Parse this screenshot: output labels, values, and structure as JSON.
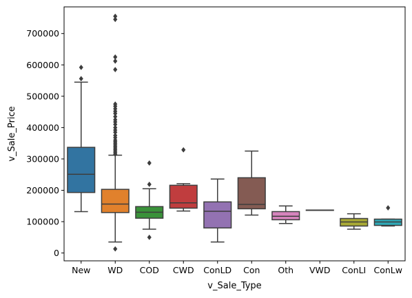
{
  "chart_data": {
    "type": "box",
    "title": "",
    "xlabel": "v_Sale_Type",
    "ylabel": "v_Sale_Price",
    "ylim": [
      -25000,
      785000
    ],
    "yticks": [
      0,
      100000,
      200000,
      300000,
      400000,
      500000,
      600000,
      700000
    ],
    "ytick_labels": [
      "0",
      "100000",
      "200000",
      "300000",
      "400000",
      "500000",
      "600000",
      "700000"
    ],
    "categories": [
      "New",
      "WD",
      "COD",
      "CWD",
      "ConLD",
      "Con",
      "Oth",
      "VWD",
      "ConLI",
      "ConLw"
    ],
    "boxes": [
      {
        "category": "New",
        "color": "#3274a1",
        "min": 132000,
        "q1": 193000,
        "median": 251000,
        "q3": 337000,
        "max": 545000,
        "outliers": [
          556000,
          592000
        ]
      },
      {
        "category": "WD",
        "color": "#e1812c",
        "min": 35000,
        "q1": 129000,
        "median": 156000,
        "q3": 203000,
        "max": 312000,
        "outliers": [
          13000,
          315000,
          320000,
          325000,
          330000,
          335000,
          340000,
          345000,
          350000,
          355000,
          360000,
          368000,
          375000,
          385000,
          392000,
          400000,
          410000,
          418000,
          425000,
          435000,
          445000,
          452000,
          460000,
          468000,
          475000,
          585000,
          612000,
          625000,
          745000,
          755000
        ]
      },
      {
        "category": "COD",
        "color": "#3a923a",
        "min": 76000,
        "q1": 111000,
        "median": 130000,
        "q3": 148000,
        "max": 205000,
        "outliers": [
          50000,
          219000,
          287000
        ]
      },
      {
        "category": "CWD",
        "color": "#c03d3e",
        "min": 134000,
        "q1": 143000,
        "median": 160000,
        "q3": 216000,
        "max": 221000,
        "outliers": [
          329000
        ]
      },
      {
        "category": "ConLD",
        "color": "#9372b2",
        "min": 35000,
        "q1": 80000,
        "median": 133000,
        "q3": 163000,
        "max": 236000,
        "outliers": []
      },
      {
        "category": "Con",
        "color": "#845b53",
        "min": 121000,
        "q1": 141000,
        "median": 155000,
        "q3": 240000,
        "max": 325000,
        "outliers": []
      },
      {
        "category": "Oth",
        "color": "#d684bd",
        "min": 94000,
        "q1": 106000,
        "median": 117000,
        "q3": 132000,
        "max": 150000,
        "outliers": []
      },
      {
        "category": "VWD",
        "color": "#7f7f7f",
        "min": 137000,
        "q1": 137000,
        "median": 137000,
        "q3": 137000,
        "max": 137000,
        "outliers": []
      },
      {
        "category": "ConLI",
        "color": "#a9aa35",
        "min": 76000,
        "q1": 86000,
        "median": 99000,
        "q3": 110000,
        "max": 125000,
        "outliers": []
      },
      {
        "category": "ConLw",
        "color": "#2ea8b6",
        "min": 86000,
        "q1": 88000,
        "median": 99000,
        "q3": 108000,
        "max": 108000,
        "outliers": [
          144000
        ]
      }
    ]
  }
}
